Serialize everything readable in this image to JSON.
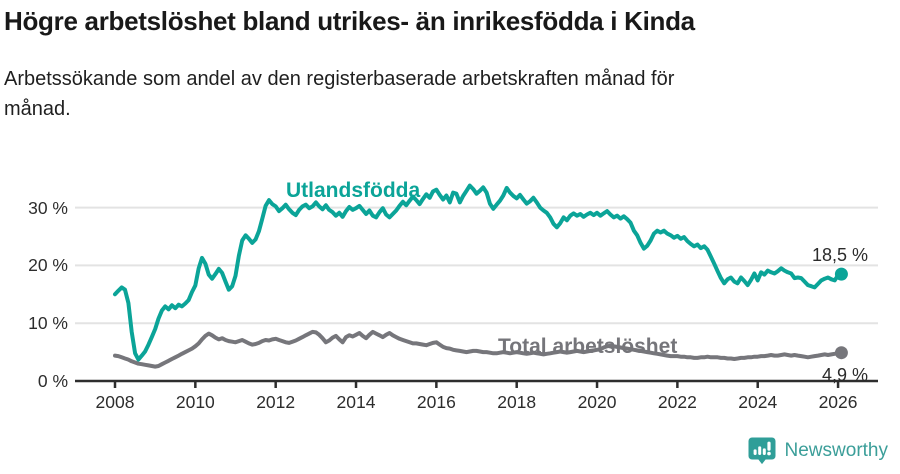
{
  "header": {
    "title": "Högre arbetslöshet bland utrikes- än inrikesfödda i Kinda",
    "subtitle_lines": {
      "0": "Arbetssökande som andel av den registerbaserade arbetskraften månad för",
      "1": "månad."
    }
  },
  "chart_data": {
    "type": "line",
    "title": "Högre arbetslöshet bland utrikes- än inrikesfödda i Kinda",
    "subtitle": "Arbetssökande som andel av den registerbaserade arbetskraften månad för månad.",
    "frequency": "monthly",
    "x_start_year": 2008,
    "x_start_month": 1,
    "x_end_year": 2026,
    "x_end_month": 2,
    "x_tick_labels": [
      "2008",
      "2010",
      "2012",
      "2014",
      "2016",
      "2018",
      "2020",
      "2022",
      "2024",
      "2026"
    ],
    "y_ticks": [
      0,
      10,
      20,
      30
    ],
    "y_tick_labels": [
      "0 %",
      "10 %",
      "20 %",
      "30 %"
    ],
    "ylim": [
      0,
      35
    ],
    "grid": "horizontal",
    "legend": "inline-labels",
    "colors": {
      "accent_teal": "#0ba498",
      "neutral_gray": "#76767b",
      "grid": "#e3e3e3",
      "axis": "#2e2e2e"
    },
    "series": [
      {
        "name": "Utlandsfödda",
        "color": "#0ba498",
        "end_label": "18,5 %",
        "end_value": 18.5,
        "values": [
          15.0,
          15.6,
          16.2,
          15.8,
          13.5,
          8.5,
          4.8,
          3.7,
          4.4,
          5.1,
          6.3,
          7.6,
          9.0,
          10.8,
          12.2,
          12.9,
          12.4,
          13.1,
          12.6,
          13.2,
          12.9,
          13.4,
          14.0,
          15.4,
          16.5,
          19.5,
          21.3,
          20.3,
          18.4,
          17.7,
          18.5,
          19.4,
          18.7,
          17.2,
          15.8,
          16.4,
          18.2,
          21.7,
          24.3,
          25.2,
          24.6,
          23.9,
          24.5,
          25.9,
          28.1,
          30.3,
          31.3,
          30.6,
          30.2,
          29.4,
          29.9,
          30.5,
          29.7,
          29.1,
          28.7,
          29.6,
          30.2,
          30.5,
          29.9,
          30.2,
          30.9,
          30.2,
          29.7,
          30.4,
          29.6,
          29.2,
          28.6,
          29.1,
          28.4,
          29.4,
          30.1,
          29.6,
          29.9,
          30.3,
          29.6,
          28.9,
          29.5,
          28.6,
          28.3,
          29.2,
          29.9,
          28.8,
          28.3,
          28.9,
          29.5,
          30.3,
          31.0,
          30.4,
          31.2,
          31.9,
          31.3,
          30.6,
          31.5,
          32.3,
          31.7,
          32.8,
          33.1,
          32.2,
          31.4,
          32.1,
          30.9,
          32.6,
          32.4,
          30.9,
          32.0,
          32.9,
          33.8,
          33.2,
          32.4,
          32.9,
          33.5,
          32.6,
          30.7,
          29.8,
          30.5,
          31.2,
          32.1,
          33.4,
          32.6,
          32.0,
          31.6,
          32.2,
          31.4,
          30.7,
          31.1,
          31.7,
          30.9,
          30.0,
          29.5,
          29.1,
          28.3,
          27.2,
          26.6,
          27.3,
          28.3,
          27.8,
          28.6,
          29.0,
          28.6,
          28.9,
          28.4,
          28.8,
          29.1,
          28.7,
          29.1,
          28.6,
          29.0,
          29.4,
          28.8,
          28.3,
          28.6,
          28.1,
          28.5,
          28.0,
          27.4,
          26.0,
          25.2,
          23.9,
          22.9,
          23.4,
          24.3,
          25.5,
          26.0,
          25.7,
          26.0,
          25.5,
          25.2,
          24.8,
          25.1,
          24.6,
          24.9,
          24.2,
          23.7,
          23.3,
          23.6,
          23.0,
          23.3,
          22.7,
          21.5,
          20.3,
          19.0,
          17.8,
          16.9,
          17.6,
          17.9,
          17.2,
          16.9,
          17.9,
          17.3,
          16.6,
          17.5,
          18.6,
          17.4,
          18.8,
          18.4,
          19.1,
          18.8,
          18.6,
          19.0,
          19.5,
          19.1,
          18.8,
          18.6,
          17.8,
          17.9,
          17.8,
          17.2,
          16.6,
          16.4,
          16.2,
          16.8,
          17.4,
          17.7,
          17.9,
          17.6,
          17.4,
          18.3,
          18.5
        ]
      },
      {
        "name": "Total arbetslöshet",
        "color": "#76767b",
        "end_label": "4,9 %",
        "end_value": 4.9,
        "values": [
          4.4,
          4.3,
          4.1,
          3.9,
          3.7,
          3.4,
          3.2,
          3.0,
          2.9,
          2.8,
          2.7,
          2.6,
          2.5,
          2.6,
          2.9,
          3.2,
          3.5,
          3.8,
          4.1,
          4.4,
          4.7,
          5.0,
          5.3,
          5.6,
          6.0,
          6.5,
          7.2,
          7.8,
          8.2,
          7.9,
          7.5,
          7.2,
          7.4,
          7.1,
          6.9,
          6.8,
          6.7,
          6.9,
          7.1,
          6.8,
          6.5,
          6.3,
          6.4,
          6.6,
          6.9,
          7.1,
          7.0,
          7.2,
          7.3,
          7.1,
          6.9,
          6.7,
          6.6,
          6.8,
          7.0,
          7.3,
          7.6,
          7.9,
          8.2,
          8.5,
          8.4,
          8.0,
          7.4,
          6.7,
          7.0,
          7.5,
          7.8,
          7.2,
          6.7,
          7.6,
          7.9,
          7.7,
          8.0,
          8.3,
          7.8,
          7.4,
          8.0,
          8.5,
          8.2,
          7.9,
          7.6,
          8.0,
          8.3,
          7.9,
          7.6,
          7.3,
          7.1,
          6.9,
          6.7,
          6.5,
          6.5,
          6.4,
          6.3,
          6.2,
          6.4,
          6.6,
          6.7,
          6.3,
          5.9,
          5.7,
          5.6,
          5.4,
          5.3,
          5.2,
          5.1,
          5.0,
          5.1,
          5.2,
          5.2,
          5.1,
          5.0,
          5.0,
          4.9,
          4.8,
          4.8,
          4.9,
          5.0,
          4.9,
          4.8,
          4.9,
          5.0,
          4.9,
          4.8,
          4.7,
          4.8,
          4.9,
          4.8,
          4.7,
          4.6,
          4.7,
          4.8,
          4.9,
          5.0,
          5.1,
          5.0,
          4.9,
          5.0,
          5.1,
          5.2,
          5.1,
          5.0,
          5.1,
          5.2,
          5.3,
          5.4,
          5.5,
          5.8,
          6.0,
          6.1,
          6.0,
          5.9,
          5.8,
          5.7,
          5.6,
          5.5,
          5.4,
          5.3,
          5.2,
          5.1,
          5.0,
          4.9,
          4.8,
          4.7,
          4.6,
          4.5,
          4.4,
          4.3,
          4.3,
          4.3,
          4.2,
          4.2,
          4.1,
          4.1,
          4.0,
          4.0,
          4.1,
          4.1,
          4.2,
          4.1,
          4.1,
          4.1,
          4.0,
          4.0,
          3.9,
          3.9,
          3.8,
          3.9,
          4.0,
          4.0,
          4.1,
          4.1,
          4.2,
          4.2,
          4.3,
          4.3,
          4.4,
          4.5,
          4.4,
          4.4,
          4.5,
          4.6,
          4.5,
          4.4,
          4.5,
          4.4,
          4.3,
          4.2,
          4.1,
          4.2,
          4.3,
          4.4,
          4.5,
          4.6,
          4.5,
          4.6,
          4.7,
          4.8,
          4.9
        ]
      }
    ]
  },
  "footer": {
    "brand": "Newsworthy"
  }
}
